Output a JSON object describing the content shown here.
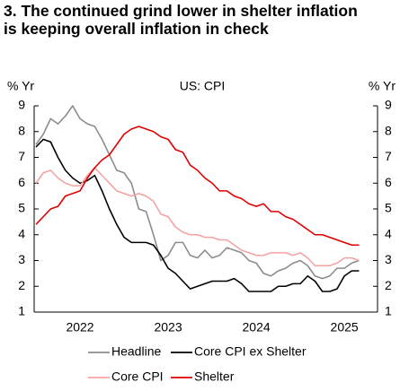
{
  "chart_data": {
    "type": "line",
    "title": "3. The continued grind lower in shelter inflation is keeping overall inflation in check",
    "subtitle": "US: CPI",
    "y_label": "% Yr",
    "y2_label": "% Yr",
    "categories": [
      null,
      null,
      null,
      null,
      null,
      null,
      "2022",
      null,
      null,
      null,
      null,
      null,
      null,
      null,
      null,
      null,
      null,
      null,
      "2023",
      null,
      null,
      null,
      null,
      null,
      null,
      null,
      null,
      null,
      null,
      null,
      "2024",
      null,
      null,
      null,
      null,
      null,
      null,
      null,
      null,
      null,
      null,
      null,
      "2025",
      null,
      null
    ],
    "ylim": [
      1,
      9
    ],
    "yticks": [
      1,
      2,
      3,
      4,
      5,
      6,
      7,
      8,
      9
    ],
    "y2lim": [
      1,
      9
    ],
    "y2ticks": [
      1,
      2,
      3,
      4,
      5,
      6,
      7,
      8,
      9
    ],
    "legend": "bottom",
    "series": [
      {
        "name": "Headline",
        "color": "#8c8c8c",
        "values": [
          7.5,
          7.9,
          8.5,
          8.3,
          8.6,
          9.0,
          8.5,
          8.3,
          8.2,
          7.7,
          7.1,
          6.5,
          6.4,
          6.0,
          5.0,
          4.9,
          4.0,
          3.0,
          3.2,
          3.7,
          3.7,
          3.2,
          3.1,
          3.4,
          3.1,
          3.2,
          3.5,
          3.4,
          3.3,
          3.0,
          2.9,
          2.5,
          2.4,
          2.6,
          2.7,
          2.9,
          3.0,
          2.8,
          2.4,
          2.3,
          2.4,
          2.7,
          2.7,
          2.9,
          3.0
        ]
      },
      {
        "name": "Core CPI ex Shelter",
        "color": "#000000",
        "values": [
          7.4,
          7.7,
          7.6,
          7.0,
          6.5,
          6.2,
          6.0,
          6.1,
          6.3,
          5.7,
          5.0,
          4.4,
          3.9,
          3.7,
          3.7,
          3.7,
          3.6,
          3.2,
          2.7,
          2.5,
          2.2,
          1.9,
          2.0,
          2.1,
          2.2,
          2.2,
          2.2,
          2.3,
          2.1,
          1.8,
          1.8,
          1.8,
          1.8,
          2.0,
          2.0,
          2.1,
          2.1,
          2.4,
          2.2,
          1.8,
          1.8,
          1.9,
          2.4,
          2.6,
          2.6
        ]
      },
      {
        "name": "Core CPI",
        "color": "#f4a3a3",
        "values": [
          6.0,
          6.4,
          6.5,
          6.2,
          6.0,
          5.9,
          5.9,
          6.3,
          6.6,
          6.3,
          6.0,
          5.7,
          5.6,
          5.5,
          5.6,
          5.5,
          5.3,
          4.8,
          4.7,
          4.3,
          4.1,
          4.0,
          4.0,
          3.9,
          3.9,
          3.8,
          3.8,
          3.6,
          3.4,
          3.3,
          3.2,
          3.2,
          3.3,
          3.3,
          3.3,
          3.2,
          3.3,
          3.1,
          2.8,
          2.8,
          2.8,
          2.9,
          3.1,
          3.1,
          3.0
        ]
      },
      {
        "name": "Shelter",
        "color": "#e00000",
        "values": [
          4.4,
          4.7,
          5.0,
          5.1,
          5.5,
          5.6,
          5.7,
          6.2,
          6.6,
          6.9,
          7.1,
          7.5,
          7.9,
          8.1,
          8.2,
          8.1,
          8.0,
          7.8,
          7.7,
          7.3,
          7.2,
          6.7,
          6.5,
          6.2,
          6.0,
          5.7,
          5.7,
          5.5,
          5.4,
          5.2,
          5.1,
          5.2,
          4.9,
          4.9,
          4.7,
          4.6,
          4.4,
          4.2,
          4.0,
          4.0,
          3.9,
          3.8,
          3.7,
          3.6,
          3.6
        ]
      }
    ]
  }
}
